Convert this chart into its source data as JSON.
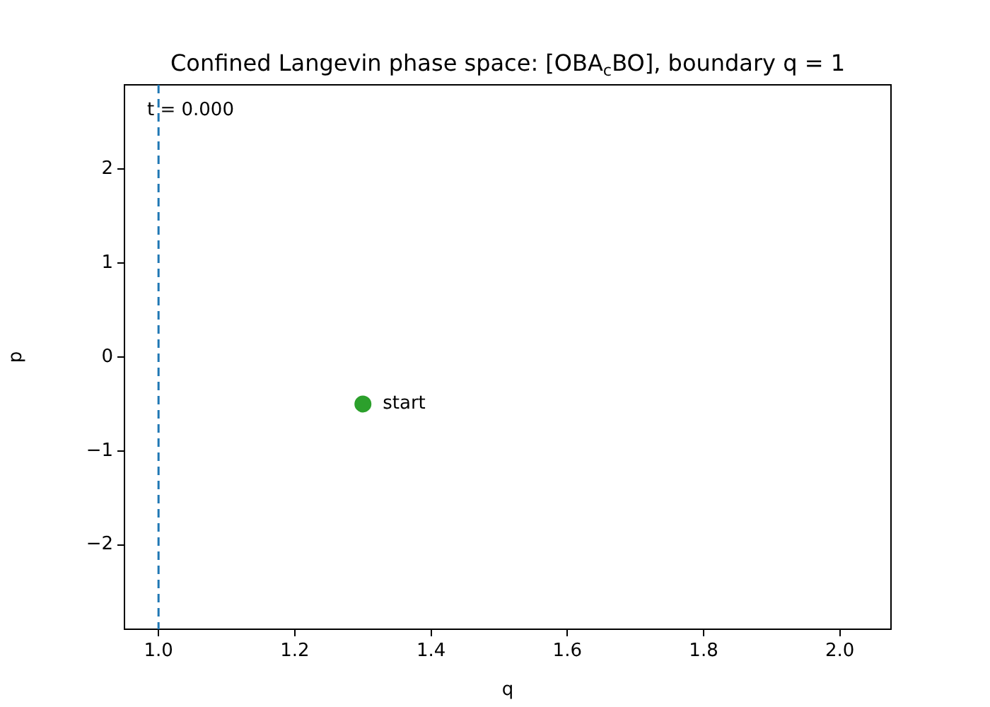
{
  "chart_data": {
    "type": "scatter",
    "title": "Confined Langevin phase space: [OBA$_{c}$BO], boundary q = 1",
    "xlabel": "q",
    "ylabel": "p",
    "series": [
      {
        "color": "#2ca02c",
        "x": [
          1.3
        ],
        "values": [
          -0.5
        ]
      }
    ],
    "marker": "circle",
    "xlim": [
      0.95,
      2.075
    ],
    "xticks": [
      {
        "value": 1,
        "label": "1.0"
      },
      {
        "value": 1.2,
        "label": "1.2"
      },
      {
        "value": 1.4,
        "label": "1.4"
      },
      {
        "value": 1.6,
        "label": "1.6"
      },
      {
        "value": 1.8,
        "label": "1.8"
      },
      {
        "value": 2,
        "label": "2.0"
      }
    ],
    "ylim": [
      -2.9,
      2.9
    ],
    "yticks": [
      {
        "value": -2,
        "label": "−2"
      },
      {
        "value": -1,
        "label": "−1"
      },
      0,
      1,
      2
    ],
    "ref_lines": [
      {
        "axis": "x",
        "value": 1,
        "color": "#1f77b4",
        "line_style": "dashed"
      }
    ],
    "annotations": [
      "t = 0.000",
      {
        "text": "start",
        "x": 1.3,
        "y": -0.5
      }
    ],
    "grid": false,
    "legend": false
  }
}
